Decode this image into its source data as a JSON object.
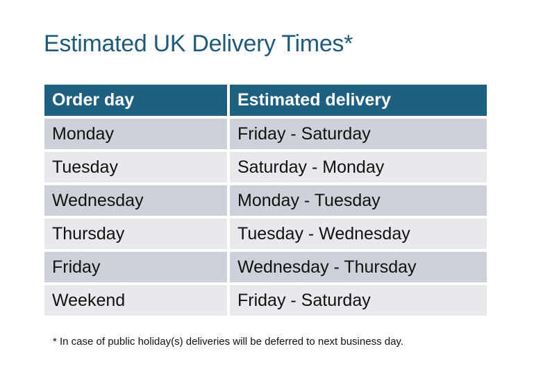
{
  "title": "Estimated UK Delivery Times*",
  "table": {
    "headers": [
      "Order day",
      "Estimated delivery"
    ],
    "rows": [
      [
        "Monday",
        "Friday - Saturday"
      ],
      [
        "Tuesday",
        "Saturday - Monday"
      ],
      [
        "Wednesday",
        "Monday - Tuesday"
      ],
      [
        "Thursday",
        "Tuesday - Wednesday"
      ],
      [
        "Friday",
        "Wednesday - Thursday"
      ],
      [
        "Weekend",
        "Friday - Saturday"
      ]
    ]
  },
  "footnote": "* In case of public holiday(s) deliveries will be deferred to next business day.",
  "colors": {
    "header": "#1f5f80",
    "title": "#1f5a79",
    "row_dark": "#cdd1d8",
    "row_light": "#e7e9ec"
  }
}
